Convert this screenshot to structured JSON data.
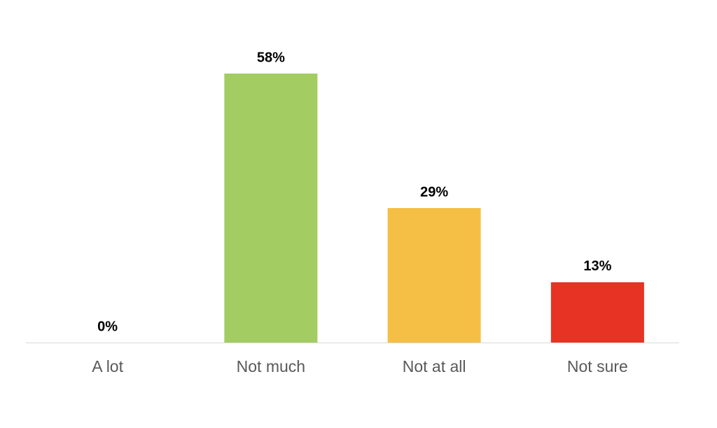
{
  "chart_data": {
    "type": "bar",
    "categories": [
      "A lot",
      "Not much",
      "Not at all",
      "Not sure"
    ],
    "values": [
      0,
      58,
      29,
      13
    ],
    "value_labels": [
      "0%",
      "58%",
      "29%",
      "13%"
    ],
    "colors": [
      null,
      "#a3cc63",
      "#f5bf45",
      "#e63323"
    ]
  }
}
